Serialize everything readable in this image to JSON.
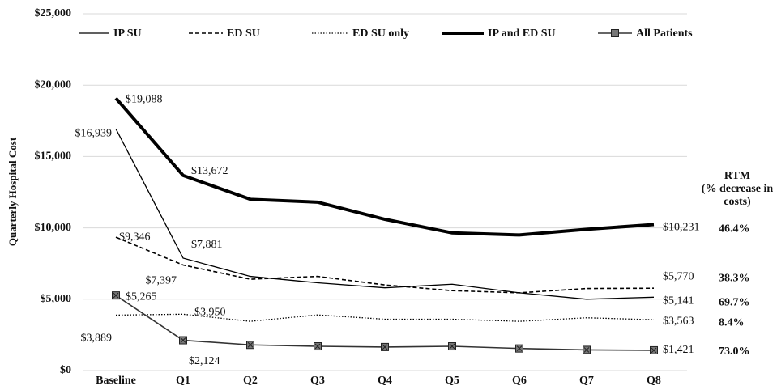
{
  "chart_data": {
    "type": "line",
    "y_label": "Quarterly Hospital Cost",
    "categories": [
      "Baseline",
      "Q1",
      "Q2",
      "Q3",
      "Q4",
      "Q5",
      "Q6",
      "Q7",
      "Q8"
    ],
    "ylim": [
      0,
      25000
    ],
    "yticks": [
      {
        "value": 0,
        "label": "$0"
      },
      {
        "value": 5000,
        "label": "$5,000"
      },
      {
        "value": 10000,
        "label": "$10,000"
      },
      {
        "value": 15000,
        "label": "$15,000"
      },
      {
        "value": 20000,
        "label": "$20,000"
      },
      {
        "value": 25000,
        "label": "$25,000"
      }
    ],
    "grid": true,
    "legend": "top",
    "rtm_title": [
      "RTM",
      "(% decrease in",
      "costs)"
    ],
    "series": [
      {
        "name": "IP SU",
        "color": "#000000",
        "style": "thin",
        "values": [
          16939,
          7881,
          6600,
          6150,
          5800,
          6050,
          5450,
          5000,
          5141
        ],
        "value_labels": [
          "$16,939",
          "$7,881",
          null,
          null,
          null,
          null,
          null,
          null,
          "$5,141"
        ],
        "rtm": {
          "value": 69.7,
          "label": "69.7%"
        }
      },
      {
        "name": "ED SU",
        "color": "#000000",
        "style": "dashed",
        "values": [
          9346,
          7397,
          6400,
          6600,
          6000,
          5600,
          5450,
          5750,
          5770
        ],
        "value_labels": [
          "$9,346",
          "$7,397",
          null,
          null,
          null,
          null,
          null,
          null,
          "$5,770"
        ],
        "rtm": {
          "value": 38.3,
          "label": "38.3%"
        }
      },
      {
        "name": "ED SU only",
        "color": "#000000",
        "style": "dotted",
        "values": [
          3889,
          3950,
          3450,
          3900,
          3600,
          3600,
          3450,
          3700,
          3563
        ],
        "value_labels": [
          "$3,889",
          "$3,950",
          null,
          null,
          null,
          null,
          null,
          null,
          "$3,563"
        ],
        "rtm": {
          "value": 8.4,
          "label": "8.4%"
        }
      },
      {
        "name": "IP and ED SU",
        "color": "#000000",
        "style": "thick",
        "values": [
          19088,
          13672,
          12000,
          11800,
          10600,
          9650,
          9500,
          9900,
          10231
        ],
        "value_labels": [
          "$19,088",
          "$13,672",
          null,
          null,
          null,
          null,
          null,
          null,
          "$10,231"
        ],
        "rtm": {
          "value": 46.4,
          "label": "46.4%"
        }
      },
      {
        "name": "All Patients",
        "color": "#333333",
        "style": "marker",
        "values": [
          5265,
          2124,
          1800,
          1700,
          1650,
          1700,
          1550,
          1450,
          1421
        ],
        "value_labels": [
          "$5,265",
          "$2,124",
          null,
          null,
          null,
          null,
          null,
          null,
          "$1,421"
        ],
        "rtm": {
          "value": 73.0,
          "label": "73.0%"
        }
      }
    ]
  }
}
